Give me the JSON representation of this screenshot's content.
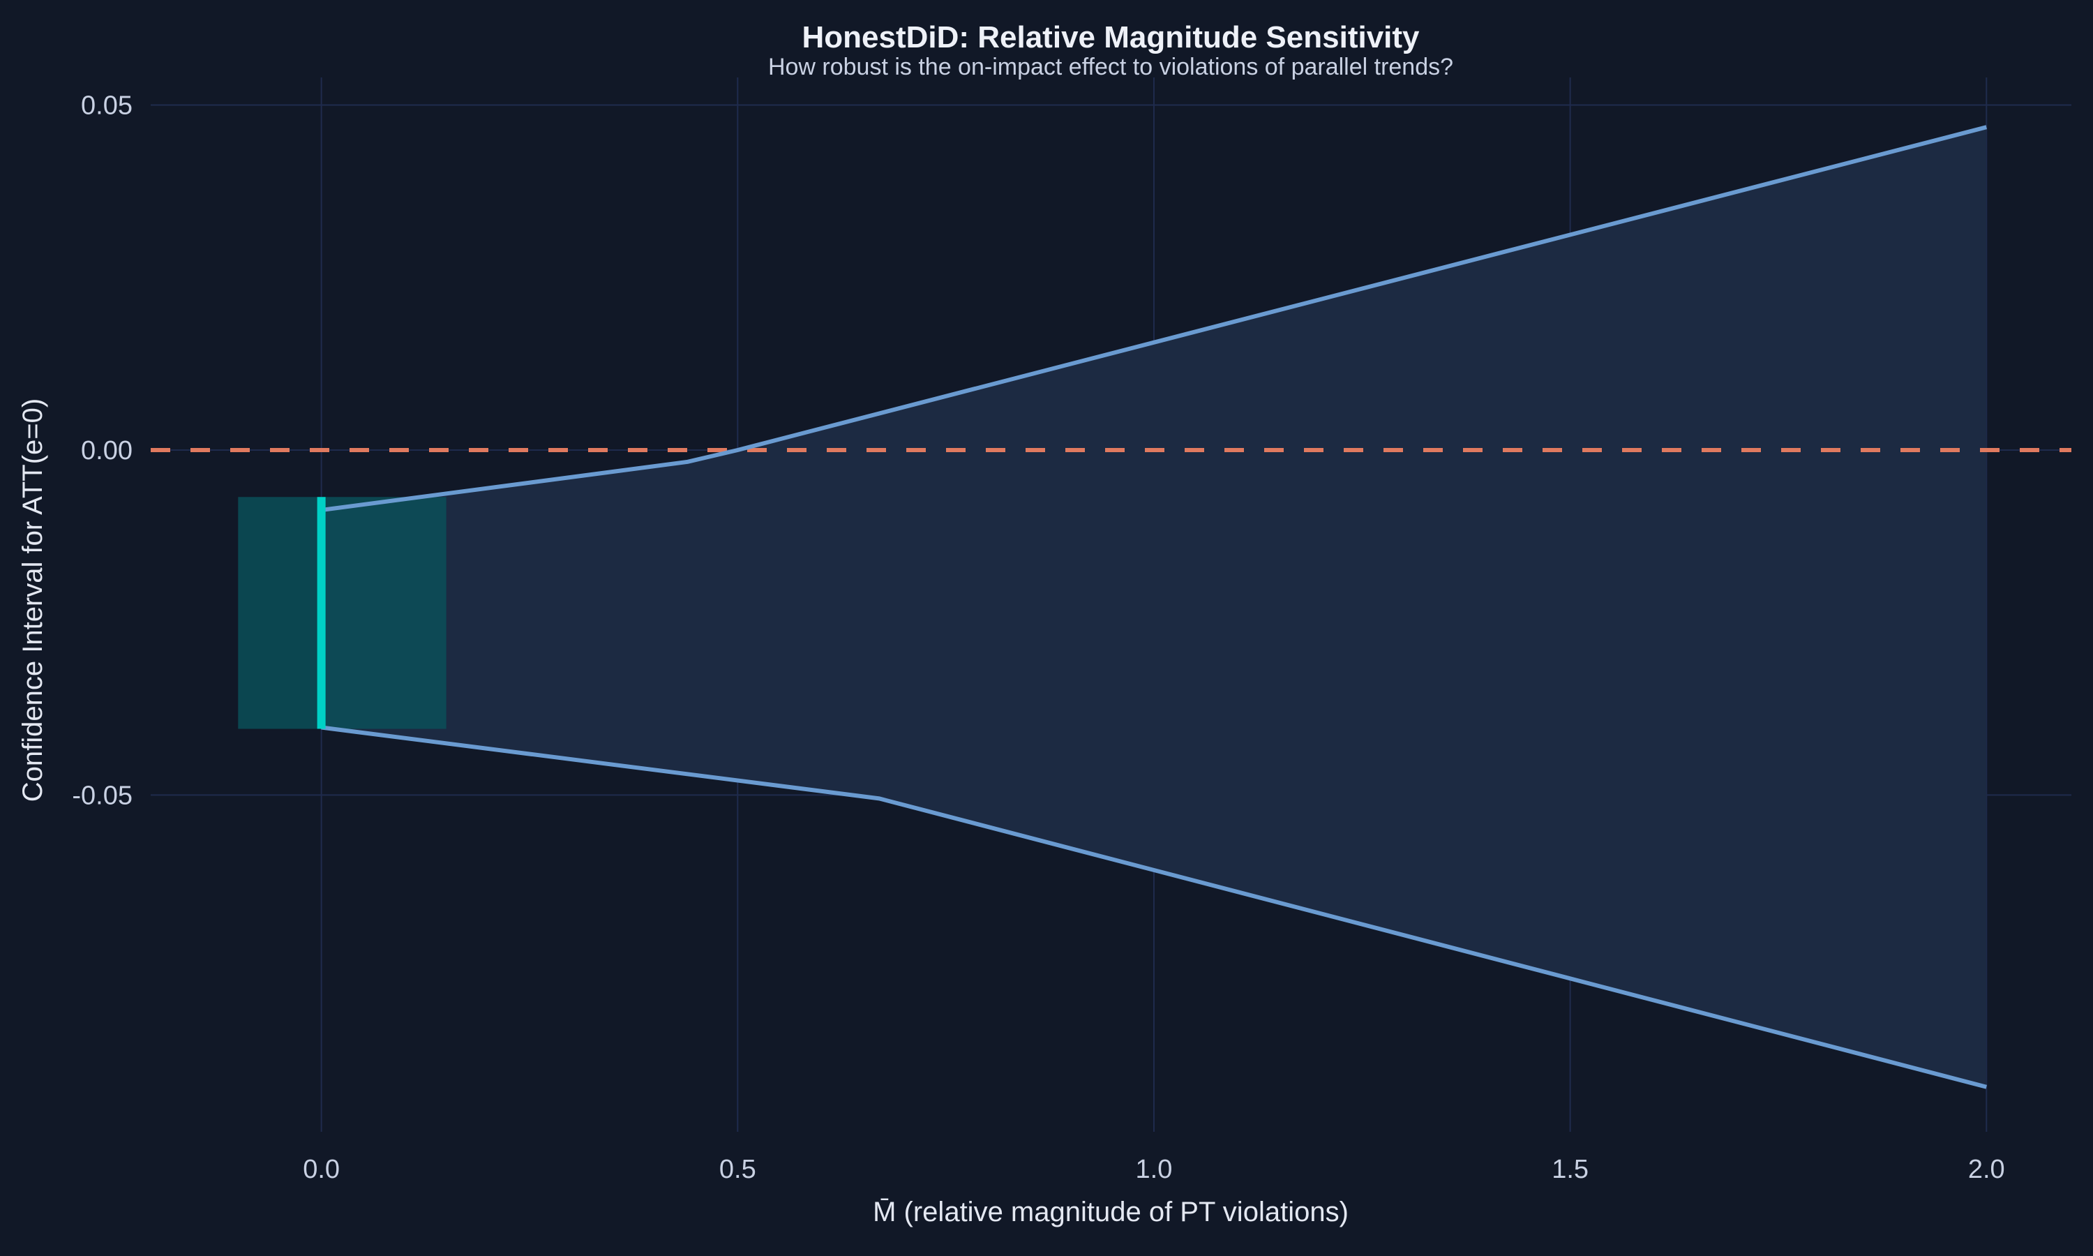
{
  "chart_data": {
    "type": "line",
    "title": "HonestDiD: Relative Magnitude Sensitivity",
    "subtitle": "How robust is the on-impact effect to violations of parallel trends?",
    "xlabel": "M̄ (relative magnitude of PT violations)",
    "ylabel": "Confidence Interval for ATT(e=0)",
    "xlim": [
      -0.205,
      2.102
    ],
    "ylim": [
      -0.0988,
      0.054
    ],
    "xticks": [
      0.0,
      0.5,
      1.0,
      1.5,
      2.0
    ],
    "xtick_labels": [
      "0.0",
      "0.5",
      "1.0",
      "1.5",
      "2.0"
    ],
    "yticks": [
      0.05,
      0.0,
      -0.05
    ],
    "ytick_labels": [
      "0.05",
      "0.00",
      "-0.05"
    ],
    "grid": true,
    "reference_line": {
      "y": 0,
      "style": "dashed",
      "color": "#e07a5f"
    },
    "robust_ci": {
      "upper": {
        "x": [
          0.0,
          0.44,
          0.5,
          2.0
        ],
        "y": [
          -0.0087,
          -0.0017,
          0.0,
          0.0468
        ]
      },
      "lower": {
        "x": [
          0.0,
          0.67,
          2.0
        ],
        "y": [
          -0.0402,
          -0.0505,
          -0.0923
        ]
      },
      "line_color": "#6a9bd1",
      "fill_color": "#1c2a42"
    },
    "original_ci": {
      "x": 0.0,
      "lower": -0.0404,
      "upper": -0.0068,
      "band_x": [
        -0.1,
        0.15
      ],
      "line_color": "#00d1c6",
      "band_color": "#0b4f58"
    }
  }
}
